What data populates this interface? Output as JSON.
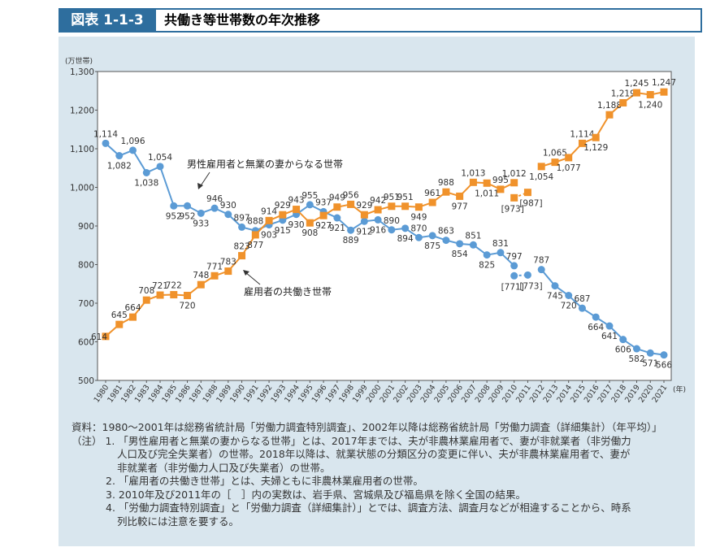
{
  "header": {
    "figure_number": "図表 1-1-3",
    "title": "共働き等世帯数の年次推移"
  },
  "chart_data": {
    "type": "line",
    "ylabel": "(万世帯)",
    "xlabel": "(年)",
    "ylim": [
      500,
      1300
    ],
    "yticks": [
      "500",
      "600",
      "700",
      "800",
      "900",
      "1,000",
      "1,100",
      "1,200",
      "1,300"
    ],
    "x": [
      1980,
      1981,
      1982,
      1983,
      1984,
      1985,
      1986,
      1987,
      1988,
      1989,
      1990,
      1991,
      1992,
      1993,
      1994,
      1995,
      1996,
      1997,
      1998,
      1999,
      2000,
      2001,
      2002,
      2003,
      2004,
      2005,
      2006,
      2007,
      2008,
      2009,
      2010,
      2011,
      2012,
      2013,
      2014,
      2015,
      2016,
      2017,
      2018,
      2019,
      2020,
      2021
    ],
    "series": [
      {
        "name": "男性雇用者と無業の妻からなる世帯",
        "color": "#5b9bd5",
        "marker": "circle",
        "values": [
          1114,
          1082,
          1096,
          1038,
          1054,
          952,
          952,
          933,
          946,
          930,
          897,
          888,
          903,
          915,
          930,
          955,
          937,
          921,
          889,
          912,
          916,
          890,
          894,
          870,
          875,
          863,
          854,
          851,
          825,
          831,
          797,
          null,
          787,
          745,
          720,
          687,
          664,
          641,
          606,
          582,
          571,
          566
        ],
        "bracketed": {
          "2010": 771,
          "2011": 773
        }
      },
      {
        "name": "雇用者の共働き世帯",
        "color": "#f0922b",
        "marker": "square",
        "values": [
          614,
          645,
          664,
          708,
          721,
          722,
          720,
          748,
          771,
          783,
          823,
          877,
          914,
          929,
          943,
          908,
          927,
          949,
          956,
          929,
          942,
          951,
          951,
          949,
          961,
          988,
          977,
          1013,
          1011,
          995,
          1012,
          null,
          1054,
          1065,
          1077,
          1114,
          1129,
          1188,
          1219,
          1245,
          1240,
          1247
        ],
        "bracketed": {
          "2010": 973,
          "2011": 987
        }
      }
    ],
    "grid": false,
    "legend": "inline annotations"
  },
  "notes": {
    "source": "資料：1980～2001年は総務省統計局「労働力調査特別調査」、2002年以降は総務省統計局「労働力調査（詳細集計）（年平均）」",
    "note1_a": "（注）  1. 「男性雇用者と無業の妻からなる世帯」とは、2017年までは、夫が非農林業雇用者で、妻が非就業者（非労働力",
    "note1_b": "人口及び完全失業者）の世帯。2018年以降は、就業状態の分類区分の変更に伴い、夫が非農林業雇用者で、妻が",
    "note1_c": "非就業者（非労働力人口及び失業者）の世帯。",
    "note2": "2. 「雇用者の共働き世帯」とは、夫婦ともに非農林業雇用者の世帯。",
    "note3": "3. 2010年及び2011年の［　］内の実数は、岩手県、宮城県及び福島県を除く全国の結果。",
    "note4_a": "4. 「労働力調査特別調査」と「労働力調査（詳細集計）」とでは、調査方法、調査月などが相違することから、時系",
    "note4_b": "列比較には注意を要する。"
  }
}
